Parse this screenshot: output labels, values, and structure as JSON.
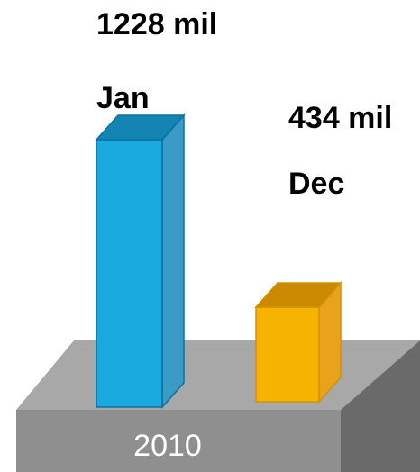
{
  "chart_data": {
    "type": "bar",
    "title": "",
    "xlabel": "",
    "ylabel": "",
    "base_label": "2010",
    "categories": [
      "Jan",
      "Dec"
    ],
    "values": [
      1228,
      434
    ],
    "value_labels": [
      "1228 mil",
      "434 mil"
    ],
    "ylim": [
      0,
      1228
    ],
    "grid": false,
    "colors": {
      "Jan": {
        "front": "#19a9de",
        "side": "#3a9bc6",
        "top": "#1485b3",
        "edge": "#0c6fa0"
      },
      "Dec": {
        "front": "#f6b400",
        "side": "#e8a31a",
        "top": "#c98a00",
        "edge": "#d39200"
      },
      "base_top": "#a8a8a8",
      "base_front": "#8f8f8f",
      "base_side": "#6a6a6a"
    }
  }
}
